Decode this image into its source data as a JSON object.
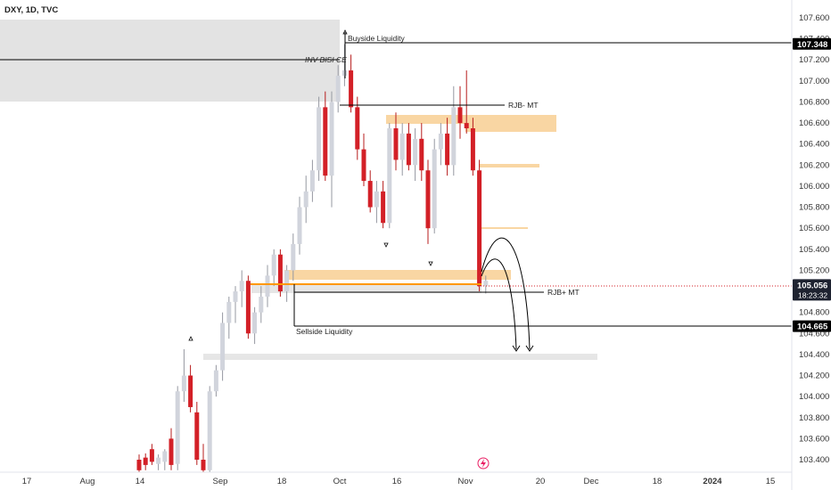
{
  "header": {
    "symbol_label": "DXY, 1D, TVC"
  },
  "chart_data": {
    "type": "candlestick",
    "title": "DXY, 1D, TVC",
    "ylim": [
      103.28,
      107.74
    ],
    "y_ticks": [
      103.4,
      103.6,
      103.8,
      104.0,
      104.2,
      104.4,
      104.6,
      104.8,
      105.0,
      105.2,
      105.4,
      105.6,
      105.8,
      106.0,
      106.2,
      106.4,
      106.6,
      106.8,
      107.0,
      107.2,
      107.4,
      107.6
    ],
    "y_tick_labels": [
      "103.400",
      "103.600",
      "103.800",
      "104.000",
      "104.200",
      "104.400",
      "104.600",
      "104.800",
      "105.000",
      "105.200",
      "105.400",
      "105.600",
      "105.800",
      "106.000",
      "106.200",
      "106.400",
      "106.600",
      "106.800",
      "107.000",
      "107.200",
      "107.400",
      "107.600"
    ],
    "x_tick_labels": [
      "17",
      "Aug",
      "14",
      "Sep",
      "18",
      "Oct",
      "16",
      "Nov",
      "20",
      "Dec",
      "18",
      "2024",
      "15"
    ],
    "x_tick_bold": [
      false,
      false,
      false,
      false,
      false,
      false,
      false,
      false,
      false,
      false,
      false,
      true,
      false
    ],
    "x_tick_index": [
      0,
      11,
      21,
      32,
      43,
      54,
      66,
      76,
      88,
      98,
      110,
      120,
      132
    ],
    "price_tags": [
      {
        "label": "107.348",
        "value": 107.348,
        "sub": ""
      },
      {
        "label": "105.056",
        "value": 105.056,
        "sub": "18:23:32"
      },
      {
        "label": "104.665",
        "value": 104.665,
        "sub": ""
      }
    ],
    "annotations": [
      {
        "text": "Buyside Liquidity"
      },
      {
        "text": "INV BISI CE"
      },
      {
        "text": "RJB- MT"
      },
      {
        "text": "RJB+ MT"
      },
      {
        "text": "Sellside Liquidity"
      }
    ],
    "colors": {
      "up": "#d1d4dc",
      "down": "#d32027",
      "zone_orange": "#f7c98a",
      "zone_gray": "#d9d9d9",
      "line": "#000000",
      "accent": "#ff9800"
    },
    "candles": [
      {
        "o": 103.4,
        "h": 103.45,
        "l": 103.28,
        "c": 103.3
      },
      {
        "o": 103.42,
        "h": 103.46,
        "l": 103.3,
        "c": 103.35
      },
      {
        "o": 103.5,
        "h": 103.55,
        "l": 103.35,
        "c": 103.38
      },
      {
        "o": 103.36,
        "h": 103.45,
        "l": 103.3,
        "c": 103.42
      },
      {
        "o": 103.38,
        "h": 103.5,
        "l": 103.3,
        "c": 103.48
      },
      {
        "o": 103.6,
        "h": 103.7,
        "l": 103.3,
        "c": 103.35
      },
      {
        "o": 103.36,
        "h": 104.1,
        "l": 103.3,
        "c": 104.05
      },
      {
        "o": 104.05,
        "h": 104.45,
        "l": 103.95,
        "c": 104.2
      },
      {
        "o": 104.2,
        "h": 104.3,
        "l": 103.85,
        "c": 103.9
      },
      {
        "o": 103.85,
        "h": 103.95,
        "l": 103.35,
        "c": 103.4
      },
      {
        "o": 103.4,
        "h": 103.55,
        "l": 103.28,
        "c": 103.3
      },
      {
        "o": 103.3,
        "h": 104.1,
        "l": 103.28,
        "c": 104.05
      },
      {
        "o": 104.05,
        "h": 104.3,
        "l": 104.0,
        "c": 104.25
      },
      {
        "o": 104.25,
        "h": 104.8,
        "l": 104.15,
        "c": 104.7
      },
      {
        "o": 104.7,
        "h": 104.95,
        "l": 104.55,
        "c": 104.9
      },
      {
        "o": 104.9,
        "h": 105.05,
        "l": 104.7,
        "c": 105.0
      },
      {
        "o": 105.0,
        "h": 105.2,
        "l": 104.85,
        "c": 105.1
      },
      {
        "o": 105.1,
        "h": 105.15,
        "l": 104.55,
        "c": 104.6
      },
      {
        "o": 104.6,
        "h": 104.85,
        "l": 104.5,
        "c": 104.8
      },
      {
        "o": 104.8,
        "h": 105.05,
        "l": 104.7,
        "c": 104.95
      },
      {
        "o": 104.95,
        "h": 105.25,
        "l": 104.85,
        "c": 105.15
      },
      {
        "o": 105.15,
        "h": 105.4,
        "l": 105.05,
        "c": 105.35
      },
      {
        "o": 105.35,
        "h": 105.4,
        "l": 104.95,
        "c": 105.0
      },
      {
        "o": 105.0,
        "h": 105.25,
        "l": 104.9,
        "c": 105.2
      },
      {
        "o": 105.2,
        "h": 105.55,
        "l": 105.1,
        "c": 105.45
      },
      {
        "o": 105.45,
        "h": 105.9,
        "l": 105.35,
        "c": 105.8
      },
      {
        "o": 105.8,
        "h": 106.1,
        "l": 105.65,
        "c": 105.95
      },
      {
        "o": 105.95,
        "h": 106.25,
        "l": 105.85,
        "c": 106.15
      },
      {
        "o": 106.15,
        "h": 106.85,
        "l": 106.05,
        "c": 106.75
      },
      {
        "o": 106.75,
        "h": 106.9,
        "l": 106.05,
        "c": 106.1
      },
      {
        "o": 106.1,
        "h": 106.9,
        "l": 105.8,
        "c": 106.8
      },
      {
        "o": 106.8,
        "h": 107.15,
        "l": 106.7,
        "c": 107.05
      },
      {
        "o": 107.05,
        "h": 107.35,
        "l": 106.95,
        "c": 107.1
      },
      {
        "o": 107.1,
        "h": 107.25,
        "l": 106.7,
        "c": 106.75
      },
      {
        "o": 106.75,
        "h": 106.85,
        "l": 106.25,
        "c": 106.35
      },
      {
        "o": 106.35,
        "h": 106.5,
        "l": 106.0,
        "c": 106.05
      },
      {
        "o": 106.05,
        "h": 106.15,
        "l": 105.75,
        "c": 105.8
      },
      {
        "o": 105.8,
        "h": 106.05,
        "l": 105.65,
        "c": 105.95
      },
      {
        "o": 105.95,
        "h": 106.05,
        "l": 105.6,
        "c": 105.65
      },
      {
        "o": 105.65,
        "h": 106.6,
        "l": 105.6,
        "c": 106.55
      },
      {
        "o": 106.55,
        "h": 106.7,
        "l": 106.15,
        "c": 106.25
      },
      {
        "o": 106.25,
        "h": 106.6,
        "l": 106.1,
        "c": 106.5
      },
      {
        "o": 106.5,
        "h": 106.6,
        "l": 106.15,
        "c": 106.2
      },
      {
        "o": 106.2,
        "h": 106.55,
        "l": 106.05,
        "c": 106.45
      },
      {
        "o": 106.45,
        "h": 106.6,
        "l": 106.05,
        "c": 106.15
      },
      {
        "o": 106.15,
        "h": 106.25,
        "l": 105.45,
        "c": 105.6
      },
      {
        "o": 105.6,
        "h": 106.45,
        "l": 105.55,
        "c": 106.35
      },
      {
        "o": 106.35,
        "h": 106.6,
        "l": 106.2,
        "c": 106.5
      },
      {
        "o": 106.5,
        "h": 106.65,
        "l": 106.1,
        "c": 106.2
      },
      {
        "o": 106.2,
        "h": 106.95,
        "l": 106.1,
        "c": 106.75
      },
      {
        "o": 106.75,
        "h": 106.95,
        "l": 106.45,
        "c": 106.6
      },
      {
        "o": 106.6,
        "h": 107.1,
        "l": 106.5,
        "c": 106.55
      },
      {
        "o": 106.55,
        "h": 106.65,
        "l": 106.1,
        "c": 106.15
      },
      {
        "o": 106.15,
        "h": 106.25,
        "l": 105.0,
        "c": 105.05
      },
      {
        "o": 105.05,
        "h": 105.15,
        "l": 104.98,
        "c": 105.1
      }
    ]
  }
}
